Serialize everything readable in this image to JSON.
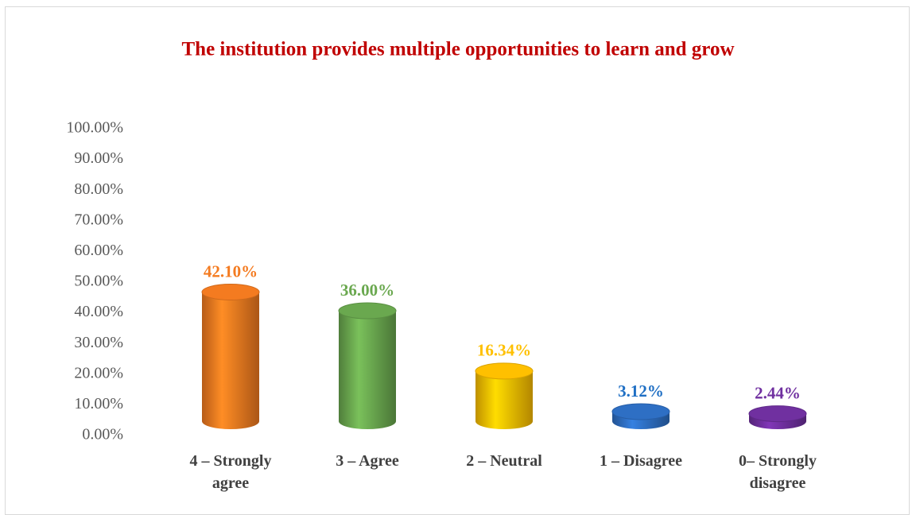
{
  "chart_data": {
    "type": "bar3d",
    "title": "The institution provides multiple opportunities to learn and grow",
    "title_color": "#c00000",
    "categories": [
      "4 – Strongly agree",
      "3 – Agree",
      "2 – Neutral",
      "1 – Disagree",
      "0– Strongly disagree"
    ],
    "values": [
      42.1,
      36.0,
      16.34,
      3.12,
      2.44
    ],
    "value_labels": [
      "42.10%",
      "36.00%",
      "16.34%",
      "3.12%",
      "2.44%"
    ],
    "colors": [
      "#f47b20",
      "#6aa84f",
      "#ffc000",
      "#2e6fc4",
      "#7030a0"
    ],
    "label_colors": [
      "#f47b20",
      "#6aa84f",
      "#ffc000",
      "#1f6fc4",
      "#7030a0"
    ],
    "ylim": [
      0,
      100
    ],
    "yticks": [
      {
        "value": 0,
        "label": "0.00%"
      },
      {
        "value": 10,
        "label": "10.00%"
      },
      {
        "value": 20,
        "label": "20.00%"
      },
      {
        "value": 30,
        "label": "30.00%"
      },
      {
        "value": 40,
        "label": "40.00%"
      },
      {
        "value": 50,
        "label": "50.00%"
      },
      {
        "value": 60,
        "label": "60.00%"
      },
      {
        "value": 70,
        "label": "70.00%"
      },
      {
        "value": 80,
        "label": "80.00%"
      },
      {
        "value": 90,
        "label": "90.00%"
      },
      {
        "value": 100,
        "label": "100.00%"
      }
    ],
    "grid": false
  }
}
